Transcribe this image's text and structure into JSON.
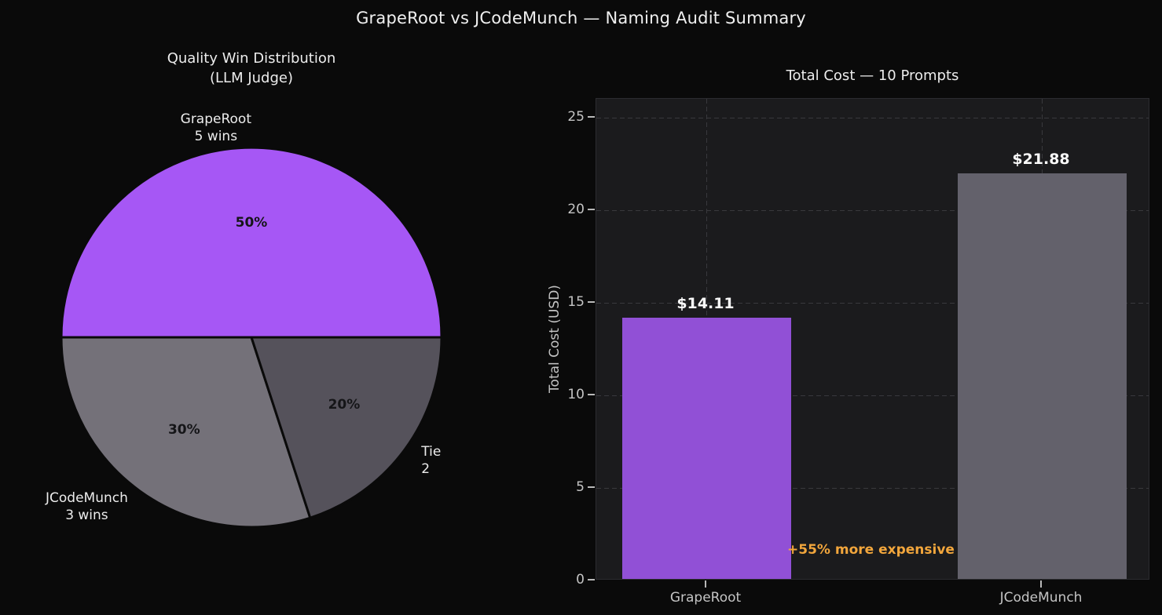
{
  "title": "GrapeRoot vs JCodeMunch — Naming Audit Summary",
  "colors": {
    "background": "#0a0a0a",
    "plot_background": "#1b1b1d",
    "purple_pie": "#a657f5",
    "purple_bar": "#9150d6",
    "gray_pie": "#747179",
    "dark_gray_pie": "#55525b",
    "gray_bar": "#63616b",
    "title_text": "#f0f0f0",
    "tick_text": "#c4c4c4",
    "pct_text": "#151518",
    "annotation_orange": "#f2a63c",
    "grid": "#39393d",
    "wedge_edge": "#0a0a0a"
  },
  "chart_data": [
    {
      "type": "pie",
      "title_lines": [
        "Quality Win Distribution",
        "(LLM Judge)"
      ],
      "start_angle": 0,
      "counterclock": true,
      "slices": [
        {
          "name": "GrapeRoot",
          "label_lines": [
            "GrapeRoot",
            "5 wins"
          ],
          "value": 5,
          "pct": "50%",
          "color_key": "purple_pie"
        },
        {
          "name": "JCodeMunch",
          "label_lines": [
            "JCodeMunch",
            "3 wins"
          ],
          "value": 3,
          "pct": "30%",
          "color_key": "gray_pie"
        },
        {
          "name": "Tie",
          "label_lines": [
            "Tie",
            "2"
          ],
          "value": 2,
          "pct": "20%",
          "color_key": "dark_gray_pie"
        }
      ]
    },
    {
      "type": "bar",
      "title": "Total Cost — 10 Prompts",
      "categories": [
        "GrapeRoot",
        "JCodeMunch"
      ],
      "values": [
        14.11,
        21.88
      ],
      "bar_labels": [
        "$14.11",
        "$21.88"
      ],
      "bar_color_keys": [
        "purple_bar",
        "gray_bar"
      ],
      "xlabel": "",
      "ylabel": "Total Cost (USD)",
      "yticks": [
        0,
        5,
        10,
        15,
        20,
        25
      ],
      "ylim": [
        0,
        26
      ],
      "grid": true,
      "annotation": "+55% more expensive"
    }
  ]
}
